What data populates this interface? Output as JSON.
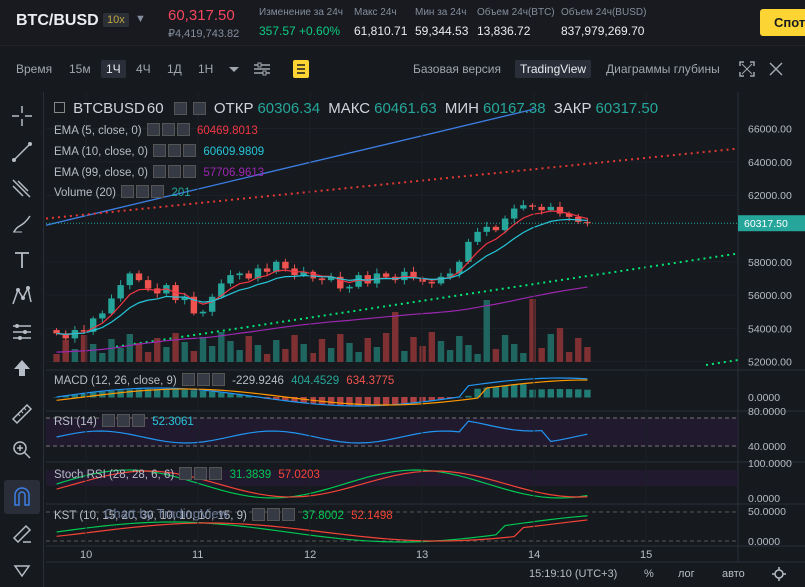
{
  "ticker": {
    "symbol": "BTC/BUSD",
    "leverage": "10x",
    "price": "60,317.50",
    "price_usd": "₽4,419,743.82",
    "stats": [
      {
        "label": "Изменение за 24ч",
        "value": "357.57 +0.60%",
        "up": true
      },
      {
        "label": "Макс 24ч",
        "value": "61,810.71",
        "up": false
      },
      {
        "label": "Мин за 24ч",
        "value": "59,344.53",
        "up": false
      },
      {
        "label": "Объем 24ч(BTC)",
        "value": "13,836.72",
        "up": false
      },
      {
        "label": "Объем 24ч(BUSD)",
        "value": "837,979,269.70",
        "up": false
      }
    ],
    "spot_button": "Спот"
  },
  "toolbar": {
    "time_label": "Время",
    "intervals": [
      "15м",
      "1Ч",
      "4Ч",
      "1Д",
      "1Н"
    ],
    "active_interval": "1Ч",
    "basic_version": "Базовая версия",
    "tradingview": "TradingView",
    "depth": "Диаграммы глубины"
  },
  "colors": {
    "up": "#26a69a",
    "down": "#ef5350",
    "ema5": "#f23645",
    "ema10": "#26c6da",
    "ema99": "#9c27b0",
    "macd": "#2196f3",
    "signal": "#ff9800",
    "rsi": "#2196f3",
    "stoch_k": "#00c853",
    "stoch_d": "#f44336",
    "kst": "#00c853",
    "kst_signal": "#f44336",
    "trend_blue": "#3d7ee5",
    "trend_red": "#e53935",
    "trend_green": "#00e676"
  },
  "chart_data": {
    "type": "candlestick",
    "symbol": "BTCBUSD",
    "interval": "60",
    "ohlc_header": {
      "open_label": "ОТКР",
      "open": "60306.34",
      "high_label": "МАКС",
      "high": "60461.63",
      "low_label": "МИН",
      "low": "60167.38",
      "close_label": "ЗАКР",
      "close": "60317.50"
    },
    "indicators": {
      "ema5": {
        "label": "EMA (5, close, 0)",
        "value": "60469.8013"
      },
      "ema10": {
        "label": "EMA (10, close, 0)",
        "value": "60609.9809"
      },
      "ema99": {
        "label": "EMA (99, close, 0)",
        "value": "57706.9613"
      },
      "volume": {
        "label": "Volume (20)",
        "value": "201"
      },
      "macd": {
        "label": "MACD (12, 26, close, 9)",
        "v1": "-229.9246",
        "v2": "404.4529",
        "v3": "634.3775"
      },
      "rsi": {
        "label": "RSI (14)",
        "value": "52.3061"
      },
      "stoch": {
        "label": "Stoch RSI (28, 28, 6, 6)",
        "k": "31.3839",
        "d": "57.0203"
      },
      "kst": {
        "label": "KST (10, 15, 20, 30, 10, 10, 10, 15, 9)",
        "v1": "37.8002",
        "v2": "52.1498"
      }
    },
    "x_ticks": [
      "10",
      "11",
      "12",
      "13",
      "14",
      "15"
    ],
    "y_ticks": [
      "66000.00",
      "64000.00",
      "62000.00",
      "58000.00",
      "56000.00",
      "54000.00",
      "52000.00"
    ],
    "last_price_label": "60317.50",
    "macd_tick": "0.0000",
    "rsi_ticks": [
      "80.0000",
      "40.0000"
    ],
    "stoch_ticks": [
      "100.0000",
      "0.0000"
    ],
    "kst_ticks": [
      "50.0000",
      "0.0000"
    ],
    "ylim": [
      51500,
      67000
    ],
    "close_path": [
      53700,
      53400,
      53900,
      53800,
      54600,
      54900,
      55800,
      56600,
      57300,
      56900,
      56400,
      56100,
      56600,
      55700,
      55900,
      54900,
      55000,
      55900,
      56700,
      57200,
      57300,
      57000,
      57600,
      57400,
      58000,
      57600,
      57200,
      57400,
      57000,
      56900,
      57100,
      56400,
      56500,
      57200,
      56700,
      57300,
      57100,
      56900,
      57400,
      57000,
      56800,
      56700,
      57100,
      57300,
      58000,
      59200,
      59800,
      60100,
      59900,
      60600,
      61200,
      61400,
      61300,
      61100,
      61300,
      60900,
      60700,
      60400,
      60317
    ]
  },
  "footer": {
    "watermark": "Chart by TradingView",
    "time": "15:19:10 (UTC+3)",
    "percent": "%",
    "log": "лог",
    "auto": "авто"
  }
}
